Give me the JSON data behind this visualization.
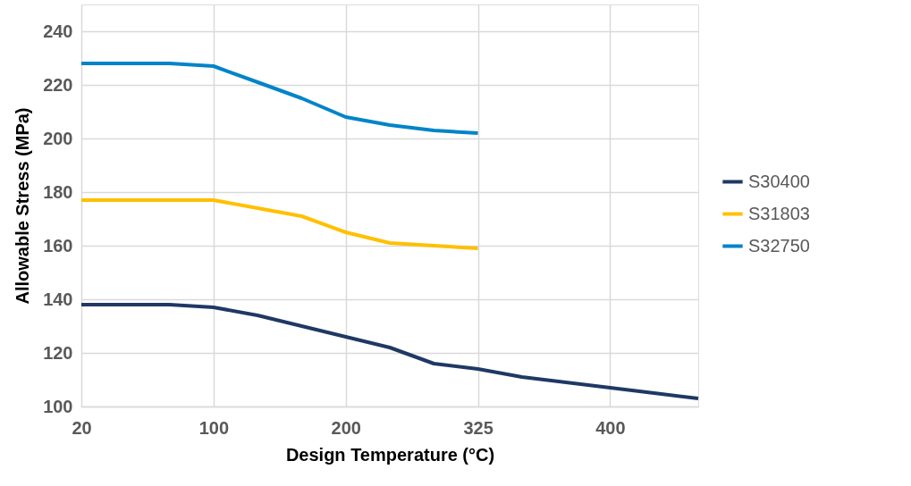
{
  "chart_data": {
    "type": "line",
    "xlabel": "Design Temperature (°C)",
    "ylabel": "Allowable Stress (MPa)",
    "categories": [
      "20",
      null,
      null,
      "100",
      null,
      null,
      "200",
      null,
      null,
      "325",
      null,
      null,
      "400",
      null,
      null
    ],
    "series": [
      {
        "name": "S30400",
        "color": "#1f3864",
        "values": [
          138,
          138,
          138,
          137,
          134,
          130,
          126,
          122,
          116,
          114,
          111,
          109,
          107,
          105,
          103
        ]
      },
      {
        "name": "S31803",
        "color": "#ffc000",
        "values": [
          177,
          177,
          177,
          177,
          174,
          171,
          165,
          161,
          160,
          159,
          null,
          null,
          null,
          null,
          null
        ]
      },
      {
        "name": "S32750",
        "color": "#0084c8",
        "values": [
          228,
          228,
          228,
          227,
          221,
          215,
          208,
          205,
          203,
          202,
          null,
          null,
          null,
          null,
          null
        ]
      }
    ],
    "ylim": [
      100,
      250
    ],
    "yticks": [
      100,
      120,
      140,
      160,
      180,
      200,
      220,
      240
    ],
    "grid": true,
    "legend": "right",
    "marker": "none",
    "line_style": "solid"
  }
}
